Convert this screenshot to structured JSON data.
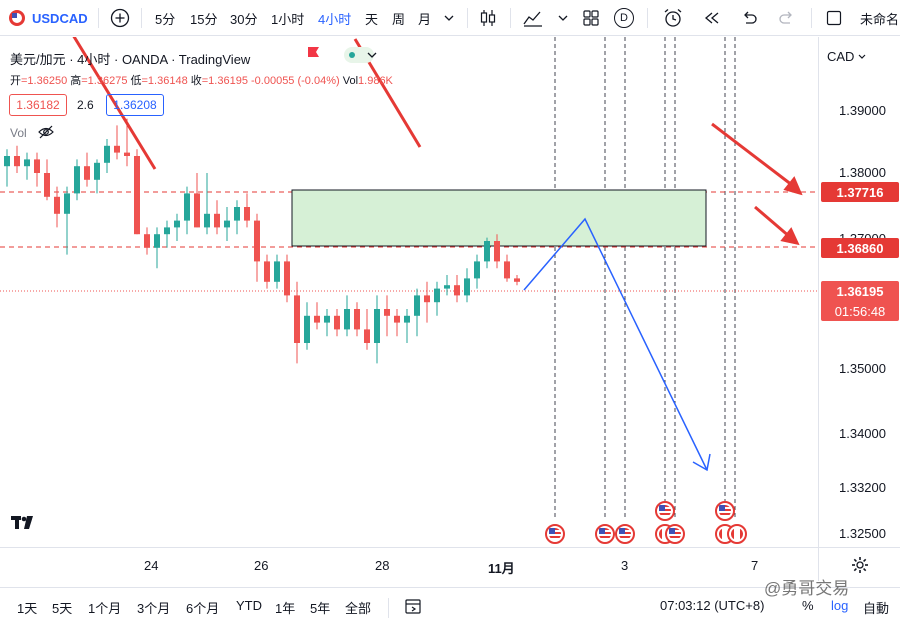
{
  "toolbar": {
    "symbol": "USDCAD",
    "add_icon": "plus-circle-icon",
    "intervals": [
      "5分",
      "15分",
      "30分",
      "1小时",
      "4小时",
      "天",
      "周",
      "月"
    ],
    "active_interval": "4小时",
    "indicator_label": "D",
    "right_label": "未命名"
  },
  "legend": {
    "title": "美元/加元 · 4小时 · OANDA · TradingView",
    "open_label": "开",
    "open": "=1.36250",
    "high_label": "高",
    "high": "=1.36275",
    "low_label": "低",
    "low": "=1.36148",
    "close_label": "收",
    "close": "=1.36195",
    "change": "-0.00055 (-0.04%)",
    "vol_label": "Vol",
    "vol": "1.986K",
    "bid": "1.36182",
    "spread": "2.6",
    "ask": "1.36208",
    "vol_indicator": "Vol"
  },
  "price_axis": {
    "currency": "CAD",
    "ticks": [
      "1.39000",
      "1.38000",
      "1.37000",
      "1.35000",
      "1.34000",
      "1.33200",
      "1.32500"
    ],
    "level_upper": "1.37716",
    "level_lower": "1.36860",
    "current_price": "1.36195",
    "countdown": "01:56:48"
  },
  "time_axis": {
    "labels": [
      "24",
      "26",
      "28",
      "11月",
      "3",
      "7"
    ]
  },
  "bottom_bar": {
    "ranges": [
      "1天",
      "5天",
      "1个月",
      "3个月",
      "6个月",
      "YTD",
      "1年",
      "5年",
      "全部"
    ],
    "time": "07:03:12 (UTC+8)",
    "percent": "%",
    "log": "log",
    "auto": "自動"
  },
  "watermark": "@勇哥交易",
  "colors": {
    "up": "#26a69a",
    "down": "#ef5350",
    "accent": "#2962ff",
    "level": "#e53935",
    "zone_fill": "#d6f0d6"
  },
  "chart_data": {
    "type": "candlestick",
    "ylim": [
      1.323,
      1.398
    ],
    "candles": [
      [
        1.379,
        1.3815,
        1.376,
        1.3805
      ],
      [
        1.3805,
        1.382,
        1.378,
        1.379
      ],
      [
        1.379,
        1.381,
        1.377,
        1.38
      ],
      [
        1.38,
        1.381,
        1.376,
        1.378
      ],
      [
        1.378,
        1.38,
        1.374,
        1.3745
      ],
      [
        1.3745,
        1.376,
        1.37,
        1.372
      ],
      [
        1.372,
        1.376,
        1.366,
        1.375
      ],
      [
        1.375,
        1.38,
        1.374,
        1.379
      ],
      [
        1.379,
        1.381,
        1.376,
        1.377
      ],
      [
        1.377,
        1.38,
        1.375,
        1.3795
      ],
      [
        1.3795,
        1.383,
        1.378,
        1.382
      ],
      [
        1.382,
        1.385,
        1.38,
        1.381
      ],
      [
        1.381,
        1.386,
        1.379,
        1.3805
      ],
      [
        1.3805,
        1.3815,
        1.369,
        1.369
      ],
      [
        1.369,
        1.37,
        1.366,
        1.367
      ],
      [
        1.367,
        1.37,
        1.364,
        1.369
      ],
      [
        1.369,
        1.371,
        1.367,
        1.37
      ],
      [
        1.37,
        1.372,
        1.368,
        1.371
      ],
      [
        1.371,
        1.376,
        1.369,
        1.375
      ],
      [
        1.375,
        1.378,
        1.37,
        1.37
      ],
      [
        1.37,
        1.378,
        1.369,
        1.372
      ],
      [
        1.372,
        1.374,
        1.369,
        1.37
      ],
      [
        1.37,
        1.373,
        1.368,
        1.371
      ],
      [
        1.371,
        1.374,
        1.369,
        1.373
      ],
      [
        1.373,
        1.375,
        1.37,
        1.371
      ],
      [
        1.371,
        1.372,
        1.362,
        1.365
      ],
      [
        1.365,
        1.366,
        1.361,
        1.362
      ],
      [
        1.362,
        1.366,
        1.361,
        1.365
      ],
      [
        1.365,
        1.366,
        1.359,
        1.36
      ],
      [
        1.36,
        1.362,
        1.35,
        1.353
      ],
      [
        1.353,
        1.359,
        1.352,
        1.357
      ],
      [
        1.357,
        1.359,
        1.355,
        1.356
      ],
      [
        1.356,
        1.358,
        1.354,
        1.357
      ],
      [
        1.357,
        1.358,
        1.354,
        1.355
      ],
      [
        1.355,
        1.36,
        1.354,
        1.358
      ],
      [
        1.358,
        1.359,
        1.354,
        1.355
      ],
      [
        1.355,
        1.358,
        1.352,
        1.353
      ],
      [
        1.353,
        1.36,
        1.35,
        1.358
      ],
      [
        1.358,
        1.36,
        1.354,
        1.357
      ],
      [
        1.357,
        1.358,
        1.354,
        1.356
      ],
      [
        1.356,
        1.358,
        1.353,
        1.357
      ],
      [
        1.357,
        1.361,
        1.354,
        1.36
      ],
      [
        1.36,
        1.362,
        1.356,
        1.359
      ],
      [
        1.359,
        1.362,
        1.357,
        1.361
      ],
      [
        1.361,
        1.363,
        1.36,
        1.3615
      ],
      [
        1.3615,
        1.363,
        1.359,
        1.36
      ],
      [
        1.36,
        1.364,
        1.359,
        1.3625
      ],
      [
        1.3625,
        1.366,
        1.361,
        1.365
      ],
      [
        1.365,
        1.3685,
        1.364,
        1.368
      ],
      [
        1.368,
        1.369,
        1.364,
        1.365
      ],
      [
        1.365,
        1.366,
        1.362,
        1.3625
      ],
      [
        1.3625,
        1.363,
        1.3615,
        1.362
      ]
    ]
  }
}
